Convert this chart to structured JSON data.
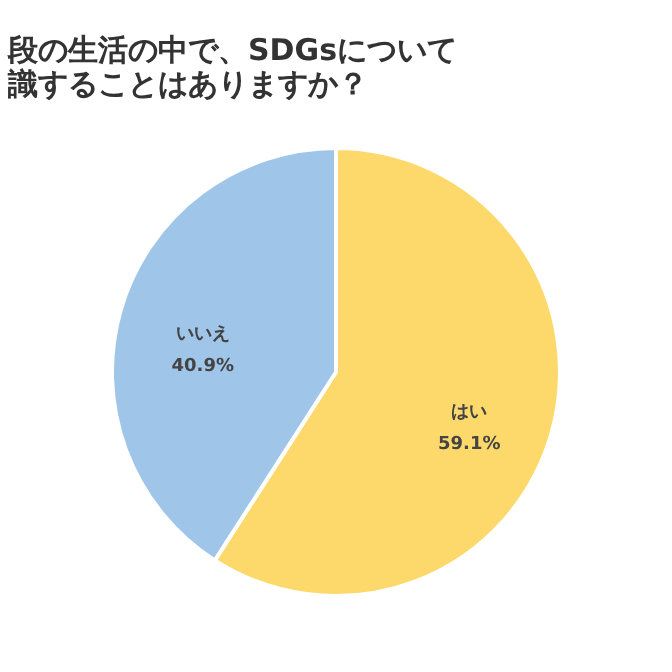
{
  "chart_data": {
    "type": "pie",
    "title": [
      "段の生活の中で、SDGsについて",
      "識することはありますか？"
    ],
    "categories": [
      "はい",
      "いいえ"
    ],
    "values": [
      59.1,
      40.9
    ],
    "value_labels": [
      "59.1%",
      "40.9%"
    ],
    "colors": [
      "#fdd96b",
      "#9fc5e8"
    ]
  }
}
